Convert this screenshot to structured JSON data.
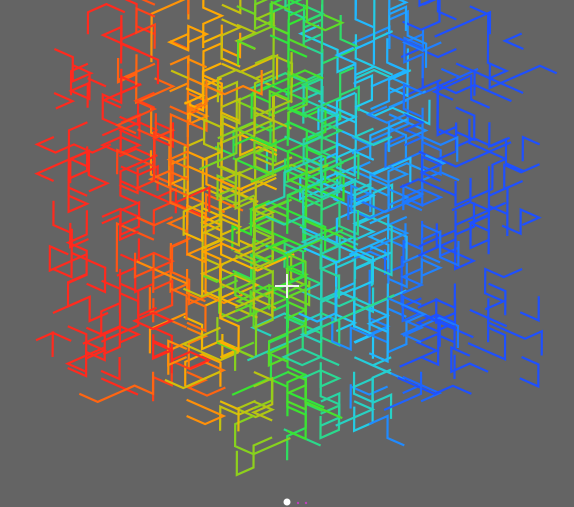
{
  "viewport": {
    "background_color": "#646464",
    "content": "3d-space-filling-curve-cube",
    "color_gradient": [
      "#1e50ff",
      "#22c8ff",
      "#32e632",
      "#ffb400",
      "#ff2a1e"
    ],
    "crosshair_icon": "crosshair-icon",
    "origin_marker_icon": "origin-dot-icon"
  }
}
